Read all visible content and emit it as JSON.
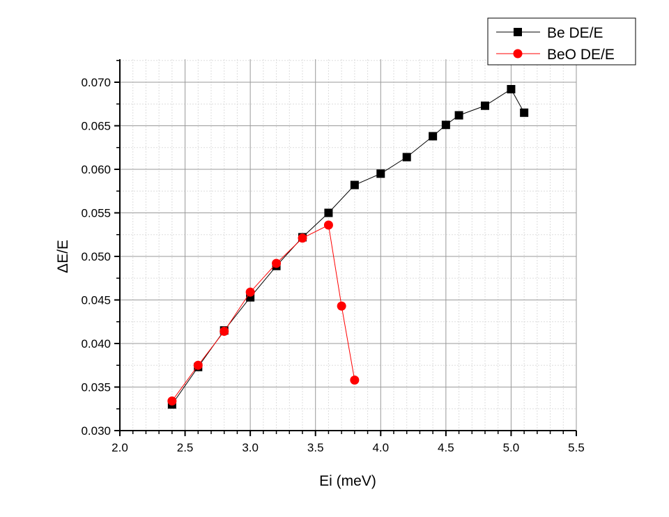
{
  "chart_data": {
    "type": "line",
    "xlabel": "Ei (meV)",
    "ylabel": "ΔE/E",
    "xlim": [
      2.0,
      5.5
    ],
    "ylim": [
      0.03,
      0.0727
    ],
    "xticks": [
      "2.0",
      "2.5",
      "3.0",
      "3.5",
      "4.0",
      "4.5",
      "5.0",
      "5.5"
    ],
    "yticks": [
      "0.030",
      "0.035",
      "0.040",
      "0.045",
      "0.050",
      "0.055",
      "0.060",
      "0.065",
      "0.070"
    ],
    "grid": true,
    "legend_position": "top-right",
    "series": [
      {
        "name": "Be DE/E",
        "color": "#000000",
        "marker": "square",
        "x": [
          2.4,
          2.6,
          2.8,
          3.0,
          3.2,
          3.4,
          3.6,
          3.8,
          4.0,
          4.2,
          4.4,
          4.5,
          4.6,
          4.8,
          5.0,
          5.1
        ],
        "y": [
          0.033,
          0.0373,
          0.0415,
          0.0453,
          0.0489,
          0.0522,
          0.055,
          0.0582,
          0.0595,
          0.0614,
          0.0638,
          0.0651,
          0.0662,
          0.0673,
          0.0692,
          0.0665
        ]
      },
      {
        "name": "BeO DE/E",
        "color": "#ff0000",
        "marker": "circle",
        "x": [
          2.4,
          2.6,
          2.8,
          3.0,
          3.2,
          3.4,
          3.6,
          3.7,
          3.8
        ],
        "y": [
          0.0334,
          0.0375,
          0.0414,
          0.0459,
          0.0492,
          0.0521,
          0.0536,
          0.0443,
          0.0358
        ]
      }
    ]
  }
}
